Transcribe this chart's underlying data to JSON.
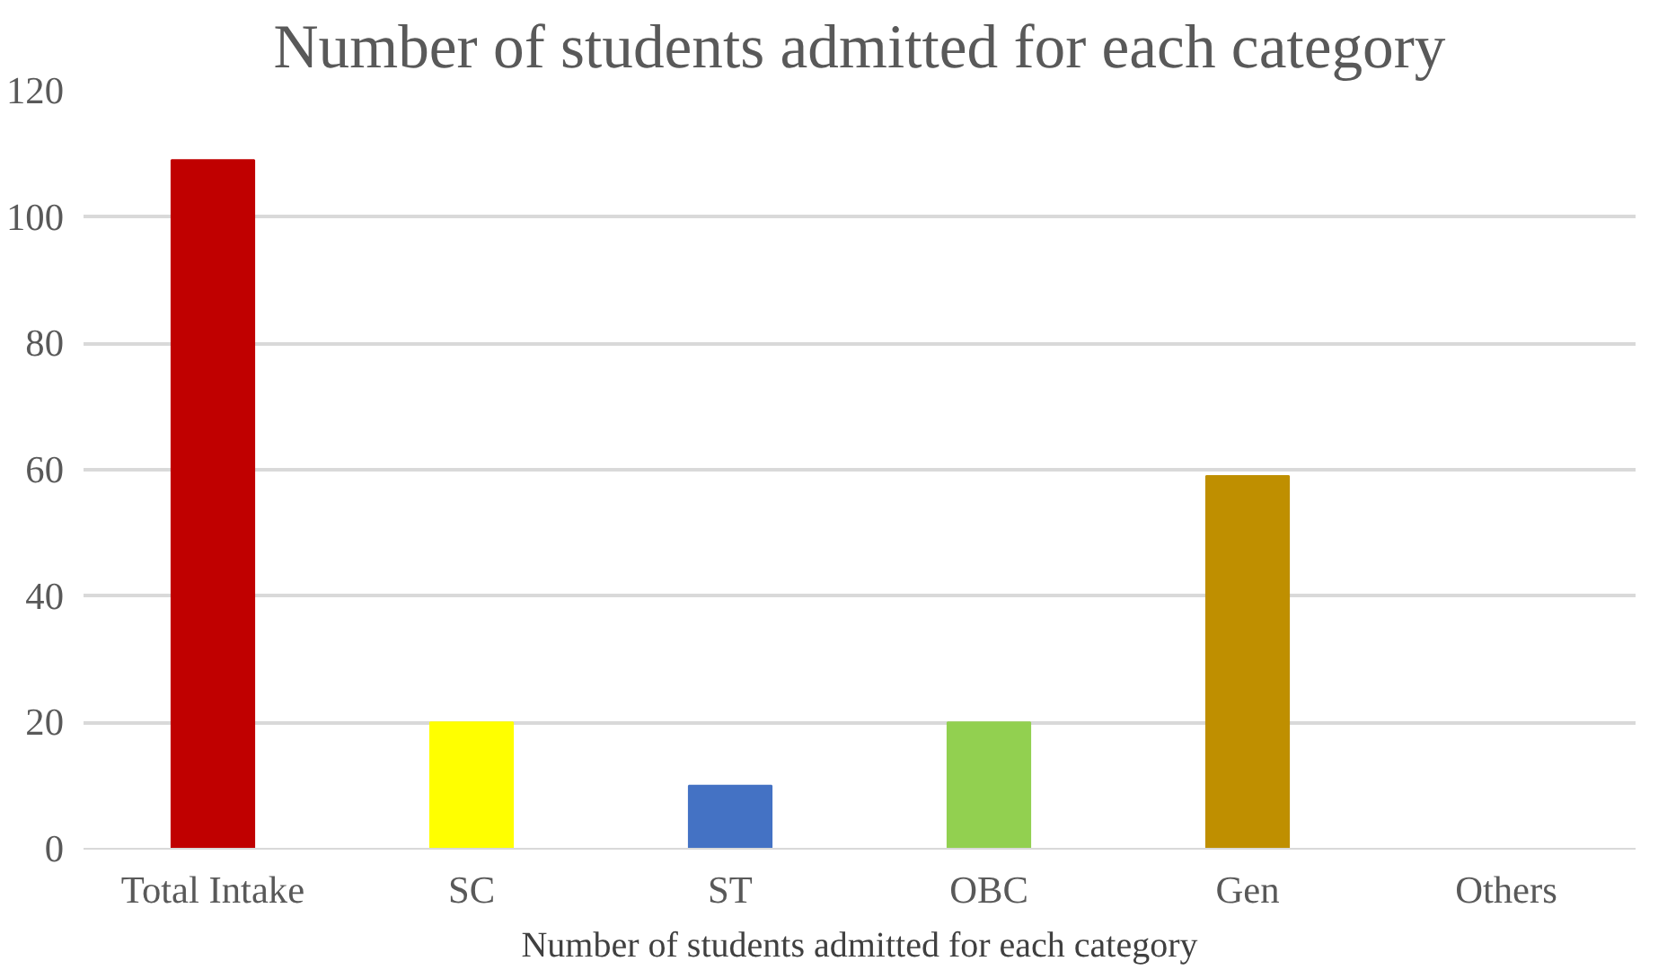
{
  "chart_data": {
    "type": "bar",
    "title": "Number of students admitted for each category",
    "xlabel": "Number of students admitted for each category",
    "categories": [
      "Total Intake",
      "SC",
      "ST",
      "OBC",
      "Gen",
      "Others"
    ],
    "values": [
      109,
      20,
      10,
      20,
      59,
      0
    ],
    "colors": [
      "#c00000",
      "#ffff00",
      "#4472c4",
      "#92d050",
      "#bf8f00",
      "#a5a5a5"
    ],
    "ylim": [
      0,
      120
    ],
    "yticks": [
      0,
      20,
      40,
      60,
      80,
      100,
      120
    ],
    "grid": "y"
  }
}
